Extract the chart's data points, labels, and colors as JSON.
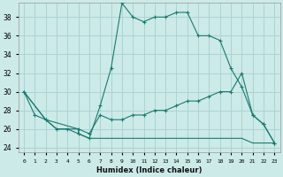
{
  "xlabel": "Humidex (Indice chaleur)",
  "bg_color": "#cceae8",
  "grid_color": "#aad4d2",
  "line_color": "#1a7a6e",
  "xlim": [
    -0.5,
    23.5
  ],
  "ylim": [
    23.5,
    39.5
  ],
  "yticks": [
    24,
    26,
    28,
    30,
    32,
    34,
    36,
    38
  ],
  "xticks": [
    0,
    1,
    2,
    3,
    4,
    5,
    6,
    7,
    8,
    9,
    10,
    11,
    12,
    13,
    14,
    15,
    16,
    17,
    18,
    19,
    20,
    21,
    22,
    23
  ],
  "series": [
    {
      "x": [
        0,
        1,
        2,
        3,
        4,
        5,
        6,
        7,
        8,
        9,
        10,
        11,
        12,
        13,
        14,
        15,
        16,
        17,
        18,
        19,
        20,
        21,
        22,
        23
      ],
      "y": [
        30,
        27.5,
        27,
        26,
        26,
        25.5,
        25,
        28.5,
        32.5,
        39.5,
        38,
        37.5,
        38,
        38,
        38.5,
        38.5,
        36,
        36,
        35.5,
        32.5,
        30.5,
        27.5,
        26.5,
        24.5
      ],
      "marker": true
    },
    {
      "x": [
        0,
        2,
        5,
        6,
        7,
        8,
        9,
        10,
        11,
        12,
        13,
        14,
        15,
        16,
        17,
        18,
        19,
        20,
        21,
        22,
        23
      ],
      "y": [
        30,
        27,
        26,
        25.5,
        27.5,
        27,
        27,
        27.5,
        27.5,
        28,
        28,
        28.5,
        29,
        29,
        29.5,
        30,
        30,
        32,
        27.5,
        26.5,
        24.5
      ],
      "marker": true
    },
    {
      "x": [
        0,
        2,
        3,
        4,
        5,
        5,
        6,
        7,
        8,
        9,
        10,
        11,
        12,
        13,
        14,
        15,
        16,
        17,
        18,
        19,
        20,
        21,
        22,
        23
      ],
      "y": [
        30,
        27,
        26,
        26,
        26,
        25.5,
        25,
        25,
        25,
        25,
        25,
        25,
        25,
        25,
        25,
        25,
        25,
        25,
        25,
        25,
        25,
        24.5,
        24.5,
        24.5
      ],
      "marker": false
    }
  ]
}
